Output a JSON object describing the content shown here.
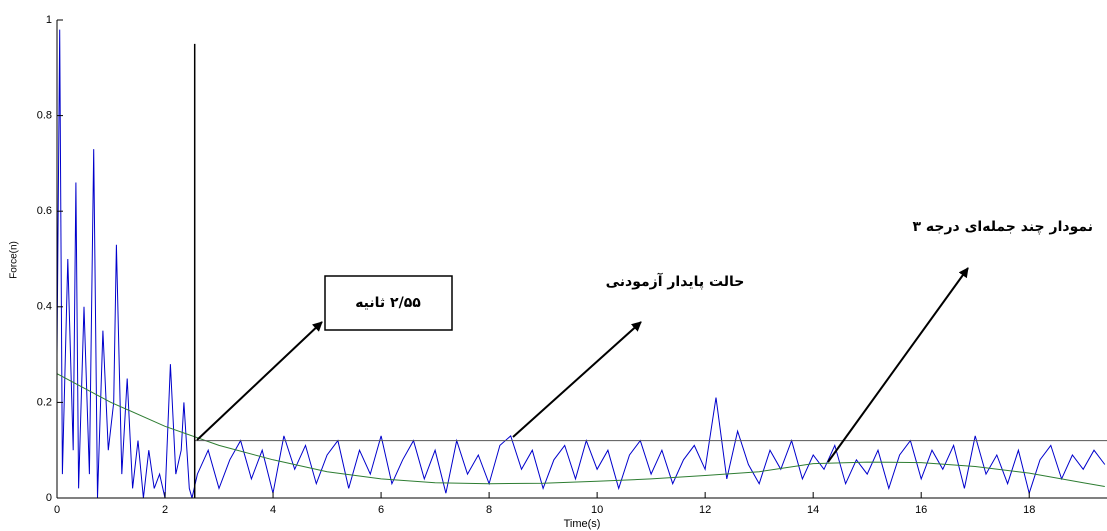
{
  "chart_data": {
    "type": "line",
    "xlabel": "Time(s)",
    "ylabel": "Force(n)",
    "xlim": [
      0,
      19.44
    ],
    "ylim": [
      0,
      1
    ],
    "xticks": [
      0,
      2,
      4,
      6,
      8,
      10,
      12,
      14,
      16,
      18
    ],
    "yticks": [
      0,
      0.2,
      0.4,
      0.6,
      0.8,
      1
    ],
    "series": [
      {
        "color": "#0000cc",
        "x": [
          0,
          0.05,
          0.1,
          0.2,
          0.3,
          0.35,
          0.4,
          0.5,
          0.6,
          0.68,
          0.75,
          0.85,
          0.95,
          1.05,
          1.1,
          1.2,
          1.3,
          1.4,
          1.5,
          1.6,
          1.7,
          1.8,
          1.9,
          2.0,
          2.1,
          2.2,
          2.3,
          2.35,
          2.45,
          2.5,
          2.6,
          2.8,
          3.0,
          3.2,
          3.4,
          3.6,
          3.8,
          4.0,
          4.2,
          4.4,
          4.6,
          4.8,
          5.0,
          5.2,
          5.4,
          5.6,
          5.8,
          6.0,
          6.2,
          6.4,
          6.6,
          6.8,
          7.0,
          7.2,
          7.4,
          7.6,
          7.8,
          8.0,
          8.2,
          8.4,
          8.6,
          8.8,
          9.0,
          9.2,
          9.4,
          9.6,
          9.8,
          10.0,
          10.2,
          10.4,
          10.6,
          10.8,
          11.0,
          11.2,
          11.4,
          11.6,
          11.8,
          12.0,
          12.2,
          12.4,
          12.6,
          12.8,
          13.0,
          13.2,
          13.4,
          13.6,
          13.8,
          14.0,
          14.2,
          14.4,
          14.6,
          14.8,
          15.0,
          15.2,
          15.4,
          15.6,
          15.8,
          16.0,
          16.2,
          16.4,
          16.6,
          16.8,
          17.0,
          17.2,
          17.4,
          17.6,
          17.8,
          18.0,
          18.2,
          18.4,
          18.6,
          18.8,
          19.0,
          19.2,
          19.4
        ],
        "values": [
          0.3,
          0.98,
          0.05,
          0.5,
          0.1,
          0.66,
          0.02,
          0.4,
          0.05,
          0.73,
          0.0,
          0.35,
          0.1,
          0.2,
          0.53,
          0.05,
          0.25,
          0.02,
          0.12,
          0.0,
          0.1,
          0.02,
          0.05,
          0.0,
          0.28,
          0.05,
          0.1,
          0.2,
          0.02,
          0.0,
          0.05,
          0.1,
          0.02,
          0.08,
          0.12,
          0.04,
          0.1,
          0.01,
          0.13,
          0.06,
          0.11,
          0.03,
          0.09,
          0.12,
          0.02,
          0.1,
          0.05,
          0.13,
          0.03,
          0.08,
          0.12,
          0.04,
          0.1,
          0.01,
          0.12,
          0.05,
          0.09,
          0.03,
          0.11,
          0.13,
          0.06,
          0.1,
          0.02,
          0.08,
          0.11,
          0.04,
          0.12,
          0.06,
          0.1,
          0.02,
          0.09,
          0.12,
          0.05,
          0.1,
          0.03,
          0.08,
          0.11,
          0.06,
          0.21,
          0.04,
          0.14,
          0.07,
          0.03,
          0.1,
          0.06,
          0.12,
          0.04,
          0.09,
          0.06,
          0.11,
          0.03,
          0.08,
          0.05,
          0.1,
          0.02,
          0.09,
          0.12,
          0.04,
          0.1,
          0.06,
          0.11,
          0.02,
          0.13,
          0.05,
          0.09,
          0.03,
          0.1,
          0.01,
          0.08,
          0.11,
          0.04,
          0.09,
          0.06,
          0.1,
          0.07
        ]
      },
      {
        "color": "#2e7d32",
        "x": [
          0,
          1,
          2,
          3,
          4,
          5,
          6,
          7,
          8,
          9,
          10,
          11,
          12,
          13,
          14,
          15,
          16,
          17,
          18,
          19,
          19.4
        ],
        "values": [
          0.26,
          0.2,
          0.15,
          0.11,
          0.08,
          0.055,
          0.04,
          0.032,
          0.03,
          0.031,
          0.035,
          0.04,
          0.047,
          0.055,
          0.072,
          0.075,
          0.074,
          0.066,
          0.052,
          0.032,
          0.024
        ]
      },
      {
        "color": "#555555",
        "x": [
          2.55,
          19.44
        ],
        "values": [
          0.12,
          0.12
        ]
      },
      {
        "color": "#000000",
        "x": [
          2.55,
          2.55
        ],
        "values": [
          0,
          0.95
        ]
      }
    ],
    "annotations": [
      {
        "text": "۲/۵۵ ثانیه"
      },
      {
        "text": "حالت پایدار آزمودنی"
      },
      {
        "text": "نمودار چند جمله‌ای درجه ۳"
      }
    ]
  }
}
